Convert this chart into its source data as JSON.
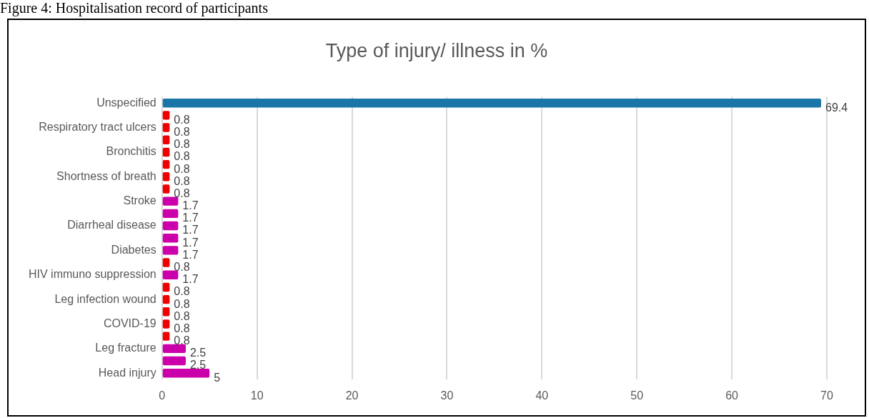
{
  "chart_data": {
    "type": "bar",
    "orientation": "horizontal",
    "title": "Type of injury/ illness in %",
    "annotations": [
      "Figure 4: Hospitalisation record of participants"
    ],
    "categories": [
      "Unspecified",
      null,
      "Respiratory tract ulcers",
      null,
      "Bronchitis",
      null,
      "Shortness of breath",
      null,
      "Stroke",
      null,
      "Diarrheal disease",
      null,
      "Diabetes",
      null,
      "HIV immuno suppression",
      null,
      "Leg infection wound",
      null,
      "COVID-19",
      null,
      "Leg fracture",
      null,
      "Head injury"
    ],
    "values": [
      69.4,
      0.8,
      0.8,
      0.8,
      0.8,
      0.8,
      0.8,
      0.8,
      1.7,
      1.7,
      1.7,
      1.7,
      1.7,
      0.8,
      1.7,
      0.8,
      0.8,
      0.8,
      0.8,
      0.8,
      2.5,
      2.5,
      5
    ],
    "colors": [
      "#1a76a8",
      "#ee0000",
      "#ee0000",
      "#ee0000",
      "#ee0000",
      "#ee0000",
      "#ee0000",
      "#ee0000",
      "#cc00aa",
      "#cc00aa",
      "#cc00aa",
      "#cc00aa",
      "#cc00aa",
      "#ee0000",
      "#cc00aa",
      "#ee0000",
      "#ee0000",
      "#ee0000",
      "#ee0000",
      "#ee0000",
      "#cc00aa",
      "#cc00aa",
      "#cc00aa"
    ],
    "xlim": [
      0,
      70
    ],
    "xticks": [
      0,
      10,
      20,
      30,
      40,
      50,
      60,
      70
    ],
    "grid": "x",
    "legend": false,
    "data_labels": true
  }
}
